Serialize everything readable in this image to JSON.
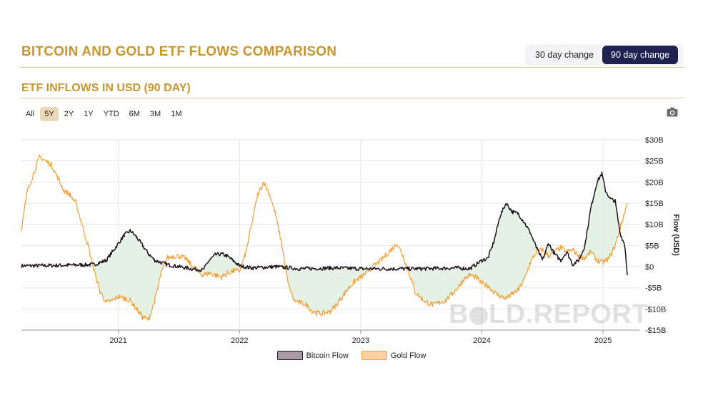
{
  "header": {
    "title": "BITCOIN AND GOLD ETF FLOWS COMPARISON",
    "subtitle": "ETF INFLOWS IN USD (90 DAY)",
    "toggle": [
      {
        "label": "30 day change",
        "active": false
      },
      {
        "label": "90 day change",
        "active": true
      }
    ]
  },
  "range_selector": [
    {
      "label": "All",
      "active": false
    },
    {
      "label": "5Y",
      "active": true
    },
    {
      "label": "2Y",
      "active": false
    },
    {
      "label": "1Y",
      "active": false
    },
    {
      "label": "YTD",
      "active": false
    },
    {
      "label": "6M",
      "active": false
    },
    {
      "label": "3M",
      "active": false
    },
    {
      "label": "1M",
      "active": false
    }
  ],
  "icons": {
    "export": "camera-icon"
  },
  "watermark": {
    "text_before": "B",
    "text_after": "LD.REPORT"
  },
  "colors": {
    "bitcoin": "#22101e",
    "gold": "#f5a33d",
    "accent": "#c9962b",
    "fill": "#dff0e0"
  },
  "chart_data": {
    "type": "line",
    "ylabel": "Flow (USD)",
    "y_axis_position": "right",
    "ylim": [
      -15,
      30
    ],
    "yticks": [
      -15,
      -10,
      -5,
      0,
      5,
      10,
      15,
      20,
      25,
      30
    ],
    "ytick_labels": [
      "-$15B",
      "-$10B",
      "-$5B",
      "$0",
      "$5B",
      "$10B",
      "$15B",
      "$20B",
      "$25B",
      "$30B"
    ],
    "xlim": [
      2020.2,
      2025.3
    ],
    "xticks": [
      2021,
      2022,
      2023,
      2024,
      2025
    ],
    "xtick_labels": [
      "2021",
      "2022",
      "2023",
      "2024",
      "2025"
    ],
    "grid": true,
    "legend_position": "bottom-center",
    "series": [
      {
        "name": "Bitcoin Flow",
        "color": "#22101e",
        "x": [
          2020.2,
          2020.5,
          2020.8,
          2020.9,
          2020.95,
          2021.0,
          2021.05,
          2021.1,
          2021.15,
          2021.2,
          2021.25,
          2021.3,
          2021.4,
          2021.5,
          2021.6,
          2021.7,
          2021.75,
          2021.8,
          2021.85,
          2021.9,
          2022.0,
          2022.1,
          2022.3,
          2022.5,
          2022.8,
          2023.0,
          2023.2,
          2023.5,
          2023.8,
          2023.9,
          2024.0,
          2024.05,
          2024.1,
          2024.15,
          2024.2,
          2024.25,
          2024.3,
          2024.35,
          2024.4,
          2024.45,
          2024.5,
          2024.55,
          2024.6,
          2024.65,
          2024.7,
          2024.75,
          2024.8,
          2024.85,
          2024.9,
          2024.95,
          2024.99,
          2025.02,
          2025.06,
          2025.1,
          2025.14,
          2025.18,
          2025.2
        ],
        "y": [
          0.2,
          0.3,
          0.5,
          1.5,
          3.5,
          5.5,
          7.5,
          8.5,
          7.0,
          5.0,
          3.0,
          1.5,
          0.5,
          0.0,
          -0.5,
          -0.8,
          1.5,
          2.8,
          3.0,
          2.5,
          0.2,
          -0.3,
          0.0,
          -0.5,
          -0.3,
          -0.5,
          -0.5,
          -0.5,
          -0.3,
          -0.5,
          1.5,
          2.0,
          6.0,
          12.0,
          15.0,
          13.0,
          12.5,
          10.5,
          8.0,
          4.5,
          1.5,
          5.5,
          3.0,
          1.5,
          3.5,
          0.5,
          1.5,
          5.0,
          14.0,
          20.0,
          22.0,
          18.0,
          16.0,
          15.5,
          8.0,
          5.0,
          -2.0
        ]
      },
      {
        "name": "Gold Flow",
        "color": "#f5a33d",
        "x": [
          2020.2,
          2020.25,
          2020.3,
          2020.35,
          2020.4,
          2020.45,
          2020.5,
          2020.55,
          2020.6,
          2020.65,
          2020.7,
          2020.75,
          2020.8,
          2020.85,
          2020.9,
          2020.95,
          2021.0,
          2021.05,
          2021.1,
          2021.15,
          2021.2,
          2021.25,
          2021.3,
          2021.35,
          2021.4,
          2021.45,
          2021.5,
          2021.55,
          2021.6,
          2021.65,
          2021.7,
          2021.75,
          2021.8,
          2021.85,
          2021.9,
          2021.95,
          2022.0,
          2022.05,
          2022.1,
          2022.15,
          2022.2,
          2022.25,
          2022.3,
          2022.35,
          2022.4,
          2022.45,
          2022.5,
          2022.55,
          2022.6,
          2022.65,
          2022.7,
          2022.75,
          2022.8,
          2022.85,
          2022.9,
          2022.95,
          2023.0,
          2023.05,
          2023.1,
          2023.15,
          2023.2,
          2023.25,
          2023.3,
          2023.35,
          2023.4,
          2023.45,
          2023.5,
          2023.55,
          2023.6,
          2023.65,
          2023.7,
          2023.75,
          2023.8,
          2023.85,
          2023.9,
          2023.95,
          2024.0,
          2024.05,
          2024.1,
          2024.15,
          2024.2,
          2024.25,
          2024.3,
          2024.35,
          2024.4,
          2024.45,
          2024.5,
          2024.55,
          2024.6,
          2024.65,
          2024.7,
          2024.75,
          2024.8,
          2024.85,
          2024.9,
          2024.95,
          2025.0,
          2025.05,
          2025.1,
          2025.15,
          2025.2
        ],
        "y": [
          9.0,
          18.0,
          22.0,
          26.0,
          25.0,
          24.0,
          21.0,
          18.0,
          17.0,
          15.0,
          10.0,
          5.0,
          -1.0,
          -6.0,
          -8.5,
          -8.0,
          -7.0,
          -7.5,
          -8.0,
          -10.0,
          -12.0,
          -12.5,
          -8.0,
          -2.0,
          2.0,
          2.5,
          2.5,
          2.0,
          0.5,
          -1.0,
          -2.0,
          -1.5,
          -2.0,
          -2.5,
          -1.5,
          -1.0,
          -1.0,
          3.0,
          10.0,
          17.0,
          20.0,
          17.0,
          12.0,
          5.0,
          -4.0,
          -8.0,
          -8.5,
          -9.0,
          -10.5,
          -11.0,
          -11.0,
          -10.5,
          -9.0,
          -7.0,
          -5.0,
          -3.5,
          -2.5,
          -1.5,
          0.0,
          1.0,
          2.5,
          4.0,
          5.5,
          2.5,
          -1.5,
          -6.0,
          -7.5,
          -8.5,
          -9.0,
          -8.5,
          -8.0,
          -6.5,
          -5.0,
          -3.0,
          -2.0,
          -2.5,
          -4.0,
          -4.5,
          -6.0,
          -7.0,
          -7.5,
          -6.5,
          -5.5,
          -3.0,
          1.0,
          3.5,
          4.0,
          2.5,
          3.5,
          4.5,
          3.5,
          4.0,
          2.5,
          2.0,
          3.5,
          1.5,
          1.0,
          2.0,
          5.0,
          10.0,
          15.0
        ]
      }
    ]
  }
}
